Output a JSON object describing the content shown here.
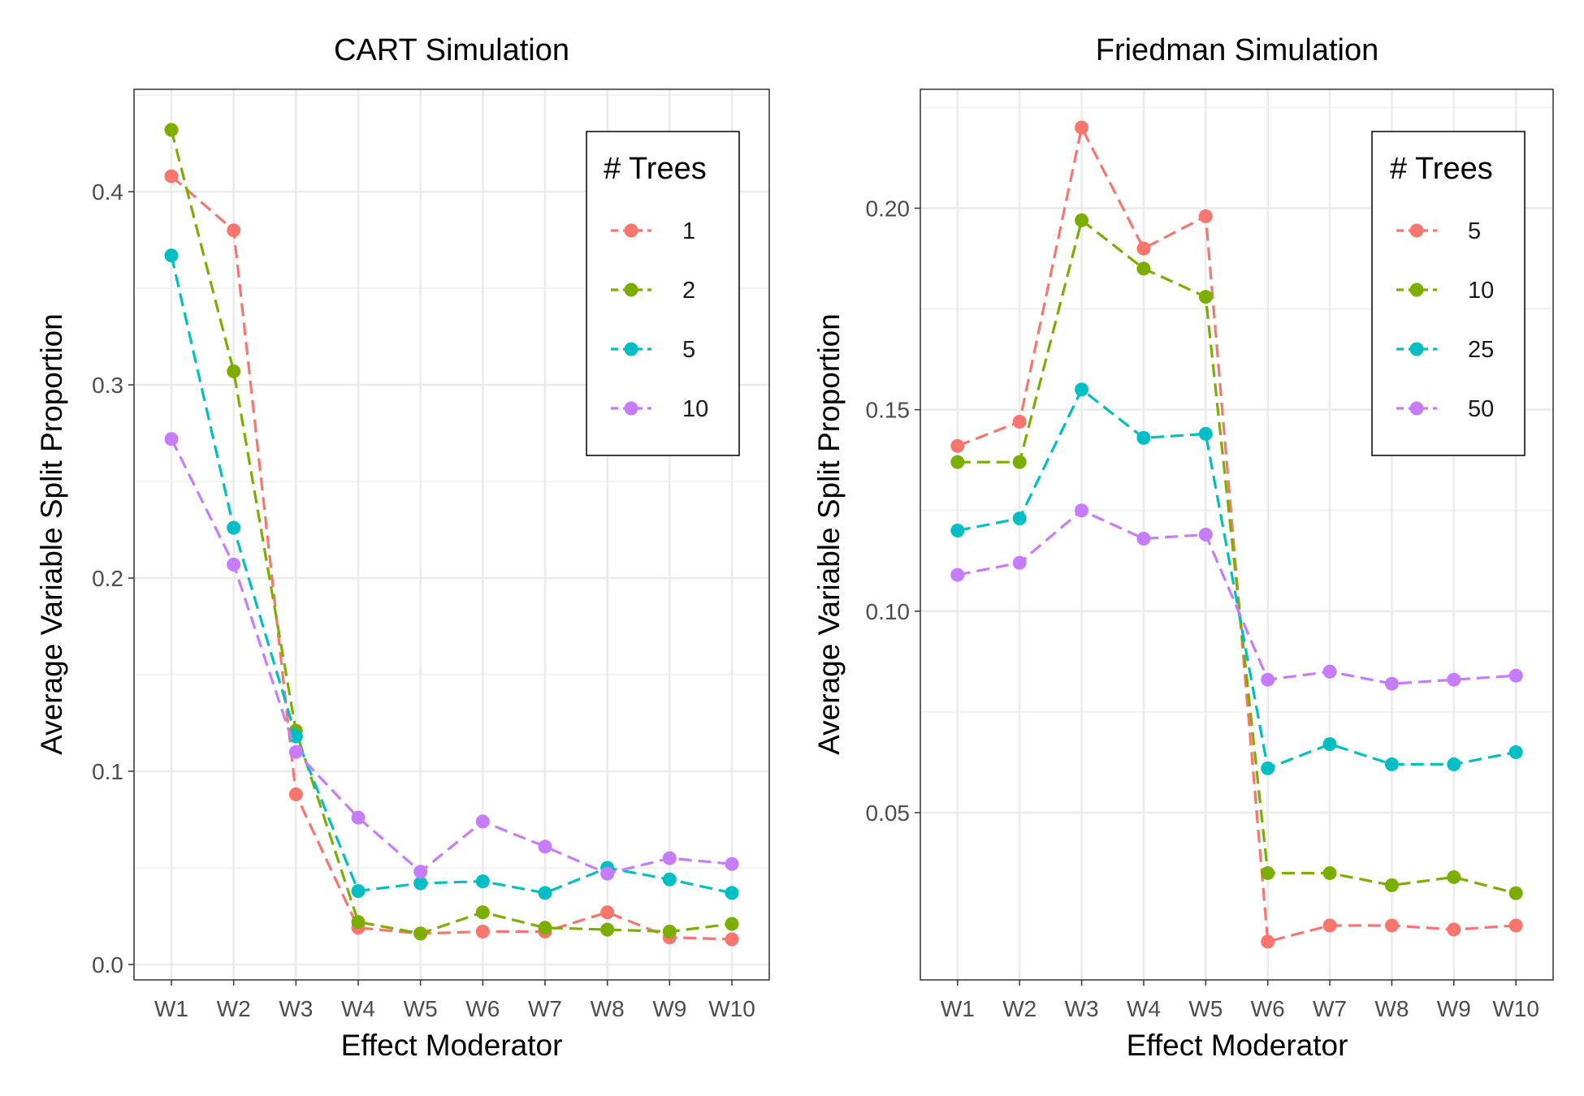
{
  "chart_data": [
    {
      "type": "line",
      "title": "CART Simulation",
      "xlabel": "Effect Moderator",
      "ylabel": "Average Variable Split Proportion",
      "categories": [
        "W1",
        "W2",
        "W3",
        "W4",
        "W5",
        "W6",
        "W7",
        "W8",
        "W9",
        "W10"
      ],
      "ylim": [
        -0.008,
        0.453
      ],
      "yticks": [
        0.0,
        0.1,
        0.2,
        0.3,
        0.4
      ],
      "ytick_labels": [
        "0.0",
        "0.1",
        "0.2",
        "0.3",
        "0.4"
      ],
      "grid": true,
      "line_style": "dashed",
      "legend": {
        "title": "# Trees",
        "placement": "top-right"
      },
      "series": [
        {
          "name": "1",
          "color": "#F8766D",
          "values": [
            0.408,
            0.38,
            0.088,
            0.019,
            0.016,
            0.017,
            0.017,
            0.027,
            0.014,
            0.013
          ]
        },
        {
          "name": "2",
          "color": "#7CAE00",
          "values": [
            0.432,
            0.307,
            0.121,
            0.022,
            0.016,
            0.027,
            0.019,
            0.018,
            0.017,
            0.021
          ]
        },
        {
          "name": "5",
          "color": "#00BFC4",
          "values": [
            0.367,
            0.226,
            0.118,
            0.038,
            0.042,
            0.043,
            0.037,
            0.05,
            0.044,
            0.037
          ]
        },
        {
          "name": "10",
          "color": "#C77CFF",
          "values": [
            0.272,
            0.207,
            0.11,
            0.076,
            0.048,
            0.074,
            0.061,
            0.047,
            0.055,
            0.052
          ]
        }
      ]
    },
    {
      "type": "line",
      "title": "Friedman Simulation",
      "xlabel": "Effect Moderator",
      "ylabel": "Average Variable Split Proportion",
      "categories": [
        "W1",
        "W2",
        "W3",
        "W4",
        "W5",
        "W6",
        "W7",
        "W8",
        "W9",
        "W10"
      ],
      "ylim": [
        0.0085,
        0.2295
      ],
      "yticks": [
        0.05,
        0.1,
        0.15,
        0.2
      ],
      "ytick_labels": [
        "0.05",
        "0.10",
        "0.15",
        "0.20"
      ],
      "grid": true,
      "line_style": "dashed",
      "legend": {
        "title": "# Trees",
        "placement": "top-right"
      },
      "series": [
        {
          "name": "5",
          "color": "#F8766D",
          "values": [
            0.141,
            0.147,
            0.22,
            0.19,
            0.198,
            0.018,
            0.022,
            0.022,
            0.021,
            0.022
          ]
        },
        {
          "name": "10",
          "color": "#7CAE00",
          "values": [
            0.137,
            0.137,
            0.197,
            0.185,
            0.178,
            0.035,
            0.035,
            0.032,
            0.034,
            0.03
          ]
        },
        {
          "name": "25",
          "color": "#00BFC4",
          "values": [
            0.12,
            0.123,
            0.155,
            0.143,
            0.144,
            0.061,
            0.067,
            0.062,
            0.062,
            0.065
          ]
        },
        {
          "name": "50",
          "color": "#C77CFF",
          "values": [
            0.109,
            0.112,
            0.125,
            0.118,
            0.119,
            0.083,
            0.085,
            0.082,
            0.083,
            0.084
          ]
        }
      ]
    }
  ]
}
